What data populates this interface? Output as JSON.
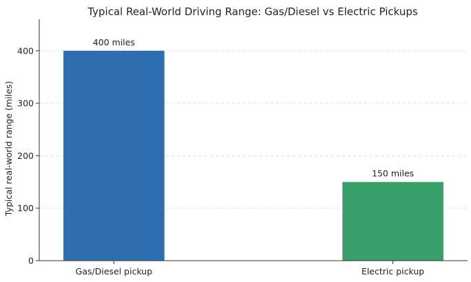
{
  "chart_data": {
    "type": "bar",
    "title": "Typical Real-World Driving Range: Gas/Diesel vs Electric Pickups",
    "xlabel": "",
    "ylabel": "Typical real-world range (miles)",
    "categories": [
      "Gas/Diesel pickup",
      "Electric pickup"
    ],
    "values": [
      400,
      150
    ],
    "data_labels": [
      "400 miles",
      "150 miles"
    ],
    "colors": [
      "#2f6db1",
      "#3a9e68"
    ],
    "ylim": [
      0,
      460
    ],
    "yticks": [
      0,
      100,
      200,
      300,
      400
    ],
    "grid": true
  }
}
